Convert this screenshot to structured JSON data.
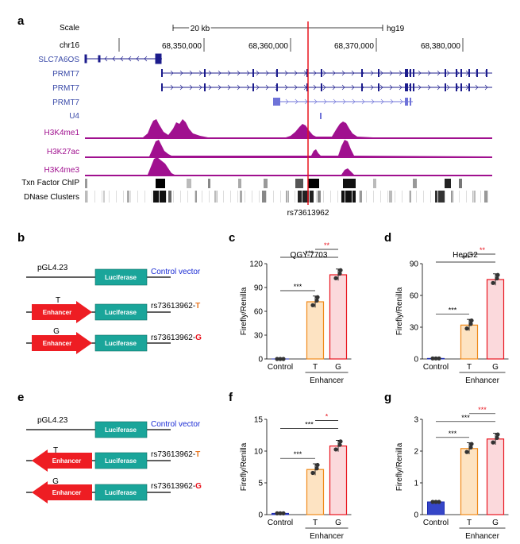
{
  "panel_letters": {
    "a": "a",
    "b": "b",
    "c": "c",
    "d": "d",
    "e": "e",
    "f": "f",
    "g": "g"
  },
  "browser": {
    "scale_label": "Scale",
    "scale_value": "20 kb",
    "genome": "hg19",
    "chrom": "chr16",
    "positions": [
      "68,350,000",
      "68,360,000",
      "68,370,000",
      "68,380,000"
    ],
    "tracks": {
      "slc7a6os": "SLC7A6OS",
      "prmt7_1": "PRMT7",
      "prmt7_2": "PRMT7",
      "prmt7_3": "PRMT7",
      "u4": "U4",
      "h3k4me1": "H3K4me1",
      "h3k27ac": "H3K27ac",
      "h3k4me3": "H3K4me3",
      "txn": "Txn Factor ChIP",
      "dnase": "DNase Clusters"
    },
    "snp_label": "rs73613962",
    "colors": {
      "gene": "#1c1c8c",
      "gene_label": "#3a4aa8",
      "histone": "#a0108f",
      "histone_label": "#a0108f",
      "snp_line": "#e8141e"
    }
  },
  "constructs_b": {
    "vector_name": "pGL4.23",
    "luciferase": "Luciferase",
    "control_label": "Control vector",
    "enhancer": "Enhancer",
    "allele_t": "T",
    "allele_g": "G",
    "snp_prefix": "rs73613962-",
    "t_color": "#e87722",
    "g_color": "#e8141e"
  },
  "constructs_e": {
    "vector_name": "pGL4.23",
    "luciferase": "Luciferase",
    "control_label": "Control vector",
    "enhancer": "Enhancer",
    "allele_t": "T",
    "allele_g": "G",
    "snp_prefix": "rs73613962-"
  },
  "chart_data": [
    {
      "panel": "c",
      "type": "bar",
      "title": "QGY-7703",
      "ylabel": "Firefly/Renilla",
      "categories": [
        "Control",
        "T",
        "G"
      ],
      "group_label": "Enhancer",
      "values": [
        0,
        72,
        106
      ],
      "ylim": [
        0,
        120
      ],
      "yticks": [
        0,
        30,
        60,
        90,
        120
      ],
      "sig": [
        "***",
        "***",
        "**"
      ]
    },
    {
      "panel": "d",
      "type": "bar",
      "title": "HepG2",
      "ylabel": "Firefly/Renilla",
      "categories": [
        "Control",
        "T",
        "G"
      ],
      "group_label": "Enhancer",
      "values": [
        0.5,
        32,
        75
      ],
      "ylim": [
        0,
        90
      ],
      "yticks": [
        0,
        30,
        60,
        90
      ],
      "sig": [
        "***",
        "***",
        "**"
      ]
    },
    {
      "panel": "f",
      "type": "bar",
      "title": "",
      "ylabel": "Firefly/Renilla",
      "categories": [
        "Control",
        "T",
        "G"
      ],
      "group_label": "Enhancer",
      "values": [
        0.2,
        7.1,
        10.8
      ],
      "ylim": [
        0,
        15
      ],
      "yticks": [
        0,
        5,
        10,
        15
      ],
      "sig": [
        "***",
        "***",
        "*"
      ]
    },
    {
      "panel": "g",
      "type": "bar",
      "title": "",
      "ylabel": "Firefly/Renilla",
      "categories": [
        "Control",
        "T",
        "G"
      ],
      "group_label": "Enhancer",
      "values": [
        0.4,
        2.08,
        2.38
      ],
      "ylim": [
        0,
        3
      ],
      "yticks": [
        0,
        1,
        2,
        3
      ],
      "sig": [
        "***",
        "***",
        "***"
      ]
    }
  ]
}
